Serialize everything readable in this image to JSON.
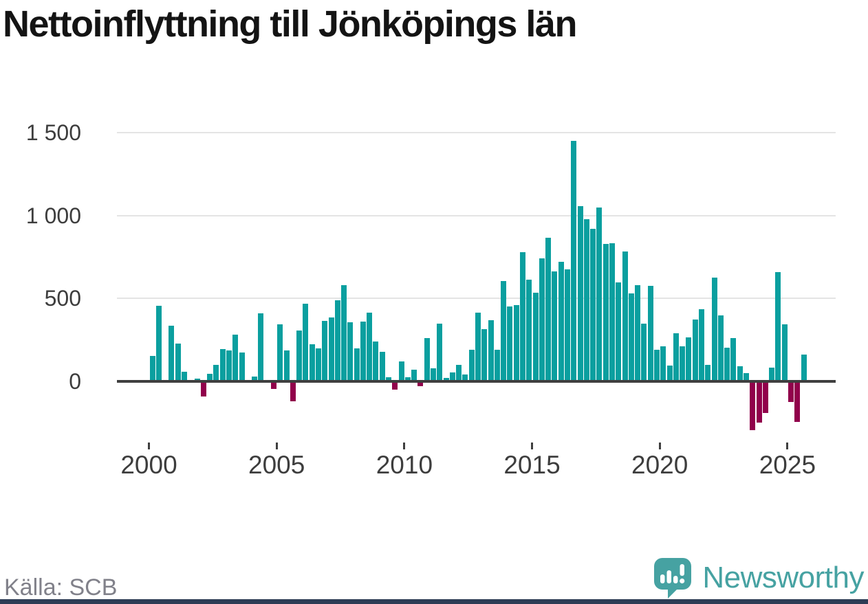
{
  "title": "Nettoinflyttning till Jönköpings län",
  "source": "Källa: SCB",
  "branding": {
    "logo_text": "Newsworthy"
  },
  "colors": {
    "positive_bar": "#0a9f9f",
    "negative_bar": "#91004b",
    "grid": "#e4e4e4",
    "zero_axis": "#3f3f3f",
    "tick": "#3f3f3f",
    "title_text": "#141414",
    "axis_label": "#3d3d3d",
    "source_text": "#81818a",
    "logo_teal": "#46a2a2",
    "bottom_bar": "#2d3c55"
  },
  "chart_data": {
    "type": "bar",
    "title": "Nettoinflyttning till Jönköpings län",
    "frequency": "quarterly",
    "x_range": [
      "2000 Q1",
      "2025 Q3"
    ],
    "start": {
      "year": 2000,
      "quarter": 1
    },
    "ylim": [
      -350,
      1530
    ],
    "grid": "horizontal",
    "y_ticks": [
      1500,
      1000,
      500,
      0
    ],
    "y_tick_labels": [
      "1 500",
      "1 000",
      "500",
      "0"
    ],
    "x_tick_years": [
      2000,
      2005,
      2010,
      2015,
      2020,
      2025
    ],
    "x_tick_labels": [
      "2000",
      "2005",
      "2010",
      "2015",
      "2020",
      "2025"
    ],
    "series": [
      {
        "name": "Nettoinflyttning",
        "values": [
          155,
          455,
          0,
          335,
          230,
          60,
          0,
          15,
          -90,
          45,
          100,
          195,
          185,
          280,
          175,
          10,
          30,
          410,
          0,
          -45,
          345,
          185,
          -120,
          305,
          470,
          225,
          200,
          365,
          385,
          490,
          580,
          355,
          200,
          360,
          415,
          240,
          180,
          25,
          -50,
          120,
          25,
          70,
          -30,
          260,
          80,
          350,
          20,
          55,
          100,
          40,
          190,
          415,
          315,
          370,
          190,
          605,
          450,
          460,
          780,
          615,
          535,
          740,
          865,
          665,
          720,
          675,
          1450,
          1055,
          980,
          920,
          1050,
          830,
          835,
          595,
          785,
          530,
          580,
          350,
          575,
          190,
          210,
          95,
          290,
          210,
          265,
          375,
          435,
          100,
          625,
          400,
          205,
          260,
          90,
          50,
          -295,
          -250,
          -190,
          85,
          660,
          345,
          -125,
          -245,
          160
        ]
      }
    ]
  }
}
